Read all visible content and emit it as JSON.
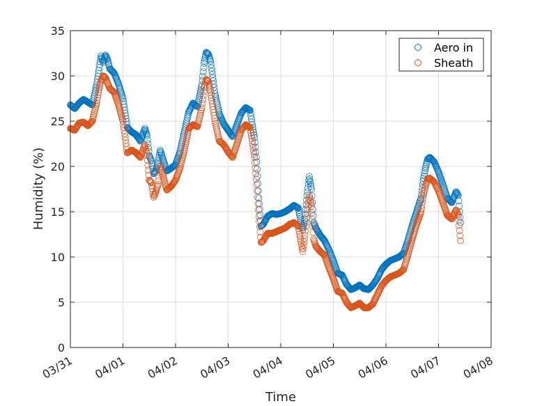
{
  "chart_data": {
    "type": "scatter",
    "xlabel": "Time",
    "ylabel": "Humidity (%)",
    "xlim": [
      "03/31",
      "04/08"
    ],
    "ylim": [
      0,
      35
    ],
    "x_ticks": [
      "03/31",
      "04/01",
      "04/02",
      "04/03",
      "04/04",
      "04/05",
      "04/06",
      "04/07",
      "04/08"
    ],
    "y_ticks": [
      0,
      5,
      10,
      15,
      20,
      25,
      30,
      35
    ],
    "grid": true,
    "legend_position": "top-right",
    "x_value_format": "MM/DD HH:mm (year not shown)",
    "series": [
      {
        "name": "Aero in",
        "color": "#0072BD",
        "marker": "open-circle",
        "points": [
          [
            "03/31 00:00",
            26.8
          ],
          [
            "03/31 02:00",
            26.4
          ],
          [
            "03/31 04:00",
            27.0
          ],
          [
            "03/31 06:00",
            27.4
          ],
          [
            "03/31 08:00",
            27.1
          ],
          [
            "03/31 10:00",
            26.8
          ],
          [
            "03/31 12:00",
            29.0
          ],
          [
            "03/31 13:00",
            30.6
          ],
          [
            "03/31 14:00",
            32.2
          ],
          [
            "03/31 15:00",
            31.5
          ],
          [
            "03/31 16:00",
            32.3
          ],
          [
            "03/31 17:00",
            31.8
          ],
          [
            "03/31 18:00",
            30.8
          ],
          [
            "03/31 20:00",
            30.3
          ],
          [
            "03/31 22:00",
            29.1
          ],
          [
            "04/01 00:00",
            27.5
          ],
          [
            "04/01 02:00",
            24.3
          ],
          [
            "04/01 04:00",
            23.8
          ],
          [
            "04/01 06:00",
            23.5
          ],
          [
            "04/01 08:00",
            22.8
          ],
          [
            "04/01 10:00",
            24.2
          ],
          [
            "04/01 11:00",
            23.4
          ],
          [
            "04/01 12:00",
            21.2
          ],
          [
            "04/01 13:00",
            20.6
          ],
          [
            "04/01 14:00",
            19.2
          ],
          [
            "04/01 15:00",
            19.5
          ],
          [
            "04/01 16:00",
            20.4
          ],
          [
            "04/01 17:00",
            21.8
          ],
          [
            "04/01 18:00",
            21.0
          ],
          [
            "04/01 20:00",
            19.5
          ],
          [
            "04/01 22:00",
            19.8
          ],
          [
            "04/02 00:00",
            20.2
          ],
          [
            "04/02 02:00",
            21.6
          ],
          [
            "04/02 04:00",
            23.8
          ],
          [
            "04/02 06:00",
            26.0
          ],
          [
            "04/02 08:00",
            27.0
          ],
          [
            "04/02 10:00",
            26.6
          ],
          [
            "04/02 12:00",
            29.0
          ],
          [
            "04/02 13:00",
            31.4
          ],
          [
            "04/02 14:00",
            32.6
          ],
          [
            "04/02 15:00",
            32.4
          ],
          [
            "04/02 16:00",
            31.6
          ],
          [
            "04/02 18:00",
            28.0
          ],
          [
            "04/02 20:00",
            25.8
          ],
          [
            "04/02 22:00",
            24.7
          ],
          [
            "04/03 00:00",
            24.0
          ],
          [
            "04/03 02:00",
            23.3
          ],
          [
            "04/03 04:00",
            24.6
          ],
          [
            "04/03 06:00",
            25.9
          ],
          [
            "04/03 08:00",
            26.5
          ],
          [
            "04/03 10:00",
            26.2
          ],
          [
            "04/03 11:00",
            24.6
          ],
          [
            "04/03 12:00",
            23.2
          ],
          [
            "04/03 13:00",
            20.5
          ],
          [
            "04/03 14:00",
            16.5
          ],
          [
            "04/03 15:00",
            13.4
          ],
          [
            "04/03 16:00",
            13.6
          ],
          [
            "04/03 18:00",
            14.5
          ],
          [
            "04/03 20:00",
            14.8
          ],
          [
            "04/03 22:00",
            14.7
          ],
          [
            "04/04 00:00",
            14.8
          ],
          [
            "04/04 02:00",
            15.0
          ],
          [
            "04/04 04:00",
            15.3
          ],
          [
            "04/04 06:00",
            15.7
          ],
          [
            "04/04 08:00",
            15.4
          ],
          [
            "04/04 10:00",
            13.0
          ],
          [
            "04/04 11:00",
            14.2
          ],
          [
            "04/04 12:00",
            16.8
          ],
          [
            "04/04 13:00",
            18.9
          ],
          [
            "04/04 14:00",
            17.5
          ],
          [
            "04/04 15:00",
            13.8
          ],
          [
            "04/04 16:00",
            13.2
          ],
          [
            "04/04 18:00",
            12.4
          ],
          [
            "04/04 20:00",
            11.8
          ],
          [
            "04/04 22:00",
            10.8
          ],
          [
            "04/05 00:00",
            9.6
          ],
          [
            "04/05 02:00",
            8.2
          ],
          [
            "04/05 04:00",
            8.0
          ],
          [
            "04/05 06:00",
            7.0
          ],
          [
            "04/05 08:00",
            6.4
          ],
          [
            "04/05 10:00",
            6.6
          ],
          [
            "04/05 12:00",
            6.9
          ],
          [
            "04/05 14:00",
            6.5
          ],
          [
            "04/05 16:00",
            6.4
          ],
          [
            "04/05 18:00",
            6.9
          ],
          [
            "04/05 20:00",
            7.6
          ],
          [
            "04/05 22:00",
            8.6
          ],
          [
            "04/06 00:00",
            9.2
          ],
          [
            "04/06 02:00",
            9.6
          ],
          [
            "04/06 04:00",
            9.8
          ],
          [
            "04/06 06:00",
            10.0
          ],
          [
            "04/06 08:00",
            10.4
          ],
          [
            "04/06 10:00",
            11.8
          ],
          [
            "04/06 12:00",
            13.5
          ],
          [
            "04/06 14:00",
            15.0
          ],
          [
            "04/06 16:00",
            16.5
          ],
          [
            "04/06 17:00",
            18.4
          ],
          [
            "04/06 18:00",
            19.8
          ],
          [
            "04/06 19:00",
            20.8
          ],
          [
            "04/06 20:00",
            21.0
          ],
          [
            "04/06 22:00",
            20.5
          ],
          [
            "04/07 00:00",
            19.4
          ],
          [
            "04/07 02:00",
            18.0
          ],
          [
            "04/07 04:00",
            16.5
          ],
          [
            "04/07 06:00",
            16.0
          ],
          [
            "04/07 08:00",
            17.2
          ],
          [
            "04/07 09:00",
            16.8
          ],
          [
            "04/07 10:00",
            13.8
          ]
        ]
      },
      {
        "name": "Sheath",
        "color": "#D95319",
        "marker": "open-circle",
        "points": [
          [
            "03/31 00:00",
            24.2
          ],
          [
            "03/31 02:00",
            24.0
          ],
          [
            "03/31 04:00",
            24.8
          ],
          [
            "03/31 06:00",
            24.9
          ],
          [
            "03/31 08:00",
            24.5
          ],
          [
            "03/31 10:00",
            25.0
          ],
          [
            "03/31 12:00",
            27.0
          ],
          [
            "03/31 13:00",
            28.5
          ],
          [
            "03/31 14:00",
            29.5
          ],
          [
            "03/31 15:00",
            30.0
          ],
          [
            "03/31 16:00",
            29.8
          ],
          [
            "03/31 17:00",
            29.2
          ],
          [
            "03/31 18:00",
            28.6
          ],
          [
            "03/31 20:00",
            28.2
          ],
          [
            "03/31 22:00",
            26.8
          ],
          [
            "04/01 00:00",
            25.0
          ],
          [
            "04/01 02:00",
            21.5
          ],
          [
            "04/01 04:00",
            21.8
          ],
          [
            "04/01 06:00",
            21.5
          ],
          [
            "04/01 08:00",
            21.0
          ],
          [
            "04/01 10:00",
            22.4
          ],
          [
            "04/01 11:00",
            21.2
          ],
          [
            "04/01 12:00",
            18.5
          ],
          [
            "04/01 13:00",
            18.2
          ],
          [
            "04/01 14:00",
            16.6
          ],
          [
            "04/01 15:00",
            17.2
          ],
          [
            "04/01 16:00",
            18.0
          ],
          [
            "04/01 17:00",
            20.2
          ],
          [
            "04/01 18:00",
            19.2
          ],
          [
            "04/01 20:00",
            17.4
          ],
          [
            "04/01 22:00",
            17.8
          ],
          [
            "04/02 00:00",
            18.5
          ],
          [
            "04/02 02:00",
            19.8
          ],
          [
            "04/02 04:00",
            21.8
          ],
          [
            "04/02 06:00",
            24.2
          ],
          [
            "04/02 08:00",
            24.6
          ],
          [
            "04/02 10:00",
            24.4
          ],
          [
            "04/02 12:00",
            26.5
          ],
          [
            "04/02 13:00",
            28.7
          ],
          [
            "04/02 14:00",
            29.6
          ],
          [
            "04/02 15:00",
            29.4
          ],
          [
            "04/02 16:00",
            28.2
          ],
          [
            "04/02 18:00",
            25.0
          ],
          [
            "04/02 20:00",
            22.8
          ],
          [
            "04/02 22:00",
            22.4
          ],
          [
            "04/03 00:00",
            21.6
          ],
          [
            "04/03 02:00",
            21.0
          ],
          [
            "04/03 04:00",
            22.5
          ],
          [
            "04/03 06:00",
            24.0
          ],
          [
            "04/03 08:00",
            24.6
          ],
          [
            "04/03 10:00",
            24.3
          ],
          [
            "04/03 11:00",
            22.8
          ],
          [
            "04/03 12:00",
            21.0
          ],
          [
            "04/03 13:00",
            18.0
          ],
          [
            "04/03 14:00",
            14.5
          ],
          [
            "04/03 15:00",
            11.6
          ],
          [
            "04/03 16:00",
            11.8
          ],
          [
            "04/03 18:00",
            12.6
          ],
          [
            "04/03 20:00",
            12.6
          ],
          [
            "04/03 22:00",
            12.8
          ],
          [
            "04/04 00:00",
            13.0
          ],
          [
            "04/04 02:00",
            13.2
          ],
          [
            "04/04 04:00",
            13.6
          ],
          [
            "04/04 06:00",
            13.8
          ],
          [
            "04/04 08:00",
            13.4
          ],
          [
            "04/04 10:00",
            10.6
          ],
          [
            "04/04 11:00",
            12.4
          ],
          [
            "04/04 12:00",
            14.8
          ],
          [
            "04/04 13:00",
            16.8
          ],
          [
            "04/04 14:00",
            15.6
          ],
          [
            "04/04 15:00",
            12.0
          ],
          [
            "04/04 16:00",
            11.2
          ],
          [
            "04/04 18:00",
            10.6
          ],
          [
            "04/04 20:00",
            10.2
          ],
          [
            "04/04 22:00",
            8.8
          ],
          [
            "04/05 00:00",
            7.6
          ],
          [
            "04/05 02:00",
            6.2
          ],
          [
            "04/05 04:00",
            6.0
          ],
          [
            "04/05 06:00",
            5.0
          ],
          [
            "04/05 08:00",
            4.4
          ],
          [
            "04/05 10:00",
            4.6
          ],
          [
            "04/05 12:00",
            4.9
          ],
          [
            "04/05 14:00",
            4.4
          ],
          [
            "04/05 16:00",
            4.4
          ],
          [
            "04/05 18:00",
            4.8
          ],
          [
            "04/05 20:00",
            5.8
          ],
          [
            "04/05 22:00",
            6.8
          ],
          [
            "04/06 00:00",
            7.4
          ],
          [
            "04/06 02:00",
            7.8
          ],
          [
            "04/06 04:00",
            8.0
          ],
          [
            "04/06 06:00",
            8.2
          ],
          [
            "04/06 08:00",
            8.6
          ],
          [
            "04/06 10:00",
            10.2
          ],
          [
            "04/06 12:00",
            12.0
          ],
          [
            "04/06 14:00",
            13.6
          ],
          [
            "04/06 16:00",
            15.0
          ],
          [
            "04/06 17:00",
            16.8
          ],
          [
            "04/06 18:00",
            17.8
          ],
          [
            "04/06 19:00",
            18.6
          ],
          [
            "04/06 20:00",
            18.7
          ],
          [
            "04/06 22:00",
            18.3
          ],
          [
            "04/07 00:00",
            17.3
          ],
          [
            "04/07 02:00",
            16.0
          ],
          [
            "04/07 04:00",
            14.6
          ],
          [
            "04/07 06:00",
            14.2
          ],
          [
            "04/07 08:00",
            15.2
          ],
          [
            "04/07 09:00",
            14.6
          ],
          [
            "04/07 10:00",
            11.8
          ]
        ]
      }
    ]
  }
}
